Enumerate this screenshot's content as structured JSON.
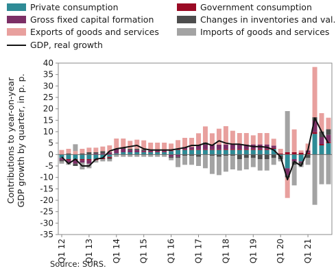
{
  "legend": [
    {
      "key": "private",
      "label": "Private consumption",
      "color": "#2e8b96"
    },
    {
      "key": "government",
      "label": "Government consumption",
      "color": "#9a0a25"
    },
    {
      "key": "gfcf",
      "label": "Gross fixed capital formation",
      "color": "#7c2f66"
    },
    {
      "key": "inventories",
      "label": "Changes in inventories and val.",
      "color": "#4d4d4d"
    },
    {
      "key": "exports",
      "label": "Exports of goods and services",
      "color": "#e8a09e"
    },
    {
      "key": "imports",
      "label": "Imports of goods and services",
      "color": "#a3a3a3"
    },
    {
      "key": "gdp",
      "label": "GDP, real growth",
      "color": "#111111"
    }
  ],
  "ylabel_line1": "Contributions to year-on-year",
  "ylabel_line2": "GDP growth by quarter, in p. p.",
  "source": "Source: SURS.",
  "chart_data": {
    "type": "bar",
    "stacked": true,
    "ylim": [
      -35,
      40
    ],
    "yticks": [
      40,
      35,
      30,
      25,
      20,
      15,
      10,
      5,
      0,
      -5,
      -10,
      -15,
      -20,
      -25,
      -30,
      -35
    ],
    "xtick_labels": [
      "Q1 12",
      "Q1 13",
      "Q1 14",
      "Q1 15",
      "Q1 16",
      "Q1 17",
      "Q1 18",
      "Q1 19",
      "Q1 20",
      "Q1 21"
    ],
    "xtick_positions": [
      0,
      4,
      8,
      12,
      16,
      20,
      24,
      28,
      32,
      36
    ],
    "categories": [
      "Q1 12",
      "Q2 12",
      "Q3 12",
      "Q4 12",
      "Q1 13",
      "Q2 13",
      "Q3 13",
      "Q4 13",
      "Q1 14",
      "Q2 14",
      "Q3 14",
      "Q4 14",
      "Q1 15",
      "Q2 15",
      "Q3 15",
      "Q4 15",
      "Q1 16",
      "Q2 16",
      "Q3 16",
      "Q4 16",
      "Q1 17",
      "Q2 17",
      "Q3 17",
      "Q4 17",
      "Q1 18",
      "Q2 18",
      "Q3 18",
      "Q4 18",
      "Q1 19",
      "Q2 19",
      "Q3 19",
      "Q4 19",
      "Q1 20",
      "Q2 20",
      "Q3 20",
      "Q4 20",
      "Q1 21",
      "Q2 21",
      "Q3 21",
      "Q4 21"
    ],
    "series": [
      {
        "name": "Private consumption",
        "values": [
          -1.5,
          -2,
          -2,
          -2,
          -2,
          -2,
          -1.5,
          -1,
          0.5,
          1,
          1,
          1,
          1,
          1,
          1,
          1,
          1.5,
          2,
          2,
          2,
          2,
          2,
          2,
          2,
          2,
          2,
          2,
          2,
          2,
          2,
          2,
          2.5,
          -0.5,
          -6,
          -2,
          -3,
          0,
          9,
          4,
          5
        ]
      },
      {
        "name": "Government consumption",
        "values": [
          0,
          -0.5,
          -0.5,
          -0.5,
          -0.5,
          -0.5,
          -0.5,
          -0.5,
          0,
          0,
          0,
          0,
          0.2,
          0.2,
          0.2,
          0.2,
          0.3,
          0.3,
          0.3,
          0.3,
          0.3,
          0.3,
          0.3,
          0.3,
          0.4,
          0.4,
          0.4,
          0.4,
          0.4,
          0.4,
          0.4,
          0.4,
          0.5,
          1,
          1,
          0.8,
          0.8,
          0.8,
          0.6,
          0.6
        ]
      },
      {
        "name": "Gross fixed capital formation",
        "values": [
          -1,
          -1,
          -1.5,
          -1,
          -1.5,
          0.5,
          0.5,
          1,
          2,
          1.5,
          1,
          1,
          0.5,
          0.5,
          0.5,
          0.5,
          -1,
          -1,
          1,
          1,
          2,
          2,
          2,
          2,
          2,
          2,
          2,
          2,
          2,
          2,
          2,
          1,
          0,
          -3,
          -1,
          -0.5,
          1,
          5,
          3,
          3
        ]
      },
      {
        "name": "Changes in inventories and val.",
        "values": [
          -0.5,
          0.5,
          -1,
          0.5,
          1,
          0.5,
          1,
          -0.5,
          0,
          0.5,
          0.5,
          0.5,
          0.5,
          0.5,
          0.5,
          0.5,
          -0.5,
          -0.5,
          -0.5,
          -0.5,
          -1,
          1,
          -0.5,
          -1,
          -0.5,
          -0.5,
          -2,
          -1.5,
          -1.5,
          -2,
          -2,
          -1.5,
          -1.5,
          -1,
          -1.5,
          -1,
          -1.5,
          1.5,
          2.5,
          2.5
        ]
      },
      {
        "name": "Exports of goods and services",
        "values": [
          2,
          2,
          1.5,
          2,
          2,
          2,
          2,
          3,
          4.5,
          4,
          3.5,
          4,
          4,
          3,
          3,
          3,
          3,
          4,
          4,
          4,
          5,
          7,
          5,
          7,
          8,
          6,
          5,
          5,
          4,
          5,
          5,
          3,
          2,
          -9,
          10,
          1,
          3,
          22,
          8,
          5
        ]
      },
      {
        "name": "Imports of goods and services",
        "values": [
          -1,
          -1,
          3,
          -3,
          -2,
          -1,
          -1,
          -1,
          -1,
          -1,
          -1,
          -1,
          -1,
          -1,
          -1,
          -1,
          -1,
          -4,
          -4,
          -4,
          -4,
          -6,
          -8,
          -8,
          -7,
          -6,
          -5,
          -5,
          -4,
          -5,
          -5,
          -3,
          -1,
          18,
          -9,
          -1,
          -3,
          -22,
          -13,
          -13
        ]
      },
      {
        "name": "GDP, real growth",
        "type": "line",
        "values": [
          -1,
          -4,
          -2,
          -5,
          -5,
          -2,
          -1.5,
          1.5,
          2.5,
          3,
          3.5,
          4,
          2.5,
          2,
          2,
          2,
          2,
          2.5,
          3,
          4,
          4,
          5,
          4,
          6,
          5,
          4.5,
          4.5,
          4,
          3.5,
          3.5,
          3.2,
          2,
          -1,
          -11,
          -3,
          -5,
          2,
          16,
          10,
          5
        ]
      }
    ]
  }
}
